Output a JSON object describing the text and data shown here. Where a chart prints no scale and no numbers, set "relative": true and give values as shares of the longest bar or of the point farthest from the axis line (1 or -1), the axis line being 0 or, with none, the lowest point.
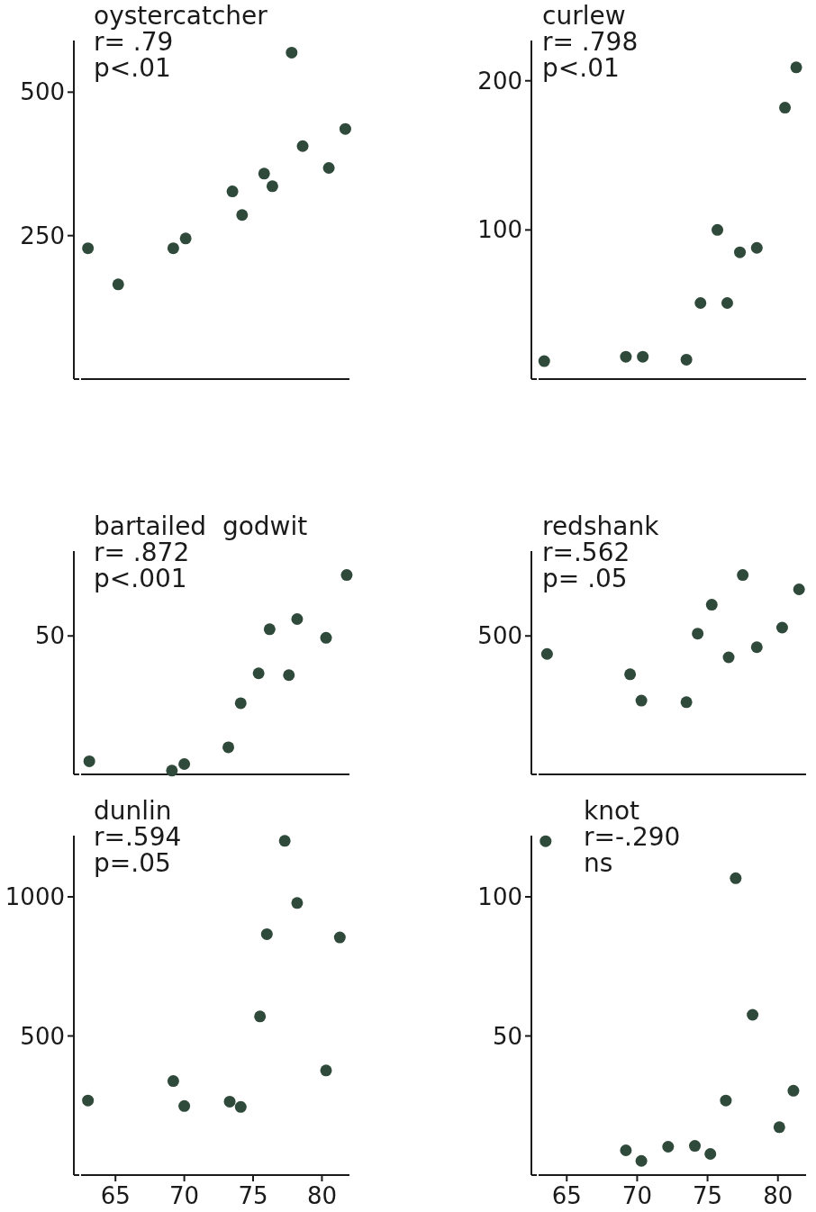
{
  "chart_data": [
    {
      "type": "scatter",
      "title": "oystercatcher",
      "annotations": [
        "r= .79",
        "p<.01"
      ],
      "x": [
        63.0,
        65.2,
        69.2,
        70.1,
        73.5,
        74.2,
        75.8,
        76.4,
        77.8,
        78.6,
        80.5,
        81.7
      ],
      "values": [
        228,
        165,
        228,
        245,
        327,
        286,
        358,
        336,
        569,
        406,
        368,
        436
      ],
      "color": "#2f4a3a",
      "marker": "circle",
      "xlim": [
        62.5,
        82
      ],
      "ylim": [
        0,
        590
      ],
      "yticks": [
        250,
        500
      ],
      "tick_labels": "y"
    },
    {
      "type": "scatter",
      "title": "curlew",
      "annotations": [
        "r= .798",
        "p<.01"
      ],
      "x": [
        63.4,
        69.2,
        70.4,
        73.5,
        74.5,
        75.7,
        76.4,
        77.3,
        78.5,
        80.5,
        81.3
      ],
      "values": [
        12,
        15,
        15,
        13,
        51,
        100,
        51,
        85,
        88,
        182,
        209
      ],
      "color": "#2f4a3a",
      "marker": "circle",
      "xlim": [
        63,
        82
      ],
      "ylim": [
        0,
        227
      ],
      "yticks": [
        100,
        200
      ],
      "tick_labels": "y"
    },
    {
      "type": "scatter",
      "relative": true,
      "title": "bartailed  godwit",
      "annotations": [
        "r= .872",
        "p<.001",
        "50"
      ],
      "x": [
        63.1,
        69.1,
        70.0,
        73.2,
        74.1,
        75.4,
        76.2,
        77.6,
        78.2,
        80.3,
        81.8
      ],
      "values": [
        0.066,
        0.019,
        0.052,
        0.136,
        0.357,
        0.507,
        0.728,
        0.498,
        0.779,
        0.685,
        1
      ],
      "color": "#2f4a3a",
      "marker": "circle",
      "xlim": [
        62.5,
        82
      ],
      "tick_labels": false
    },
    {
      "type": "scatter",
      "relative": true,
      "title": "redshank",
      "annotations": [
        "r=.562",
        "p= .05",
        "500"
      ],
      "x": [
        63.6,
        69.5,
        70.3,
        73.5,
        74.3,
        75.3,
        76.5,
        77.5,
        78.5,
        80.3,
        81.5
      ],
      "values": [
        0.604,
        0.502,
        0.37,
        0.362,
        0.706,
        0.851,
        0.587,
        1,
        0.638,
        0.736,
        0.928
      ],
      "color": "#2f4a3a",
      "marker": "circle",
      "xlim": [
        63,
        82
      ],
      "tick_labels": false
    },
    {
      "type": "scatter",
      "title": "dunlin",
      "annotations": [
        "r=.594",
        "p=.05"
      ],
      "x": [
        63.0,
        69.2,
        70.0,
        73.3,
        74.1,
        75.5,
        76.0,
        77.3,
        78.2,
        80.3,
        81.3
      ],
      "values": [
        268,
        338,
        248,
        264,
        245,
        570,
        866,
        1201,
        978,
        376,
        854
      ],
      "color": "#2f4a3a",
      "marker": "circle",
      "xlim": [
        62.5,
        82
      ],
      "xticks": [
        65,
        70,
        75,
        80
      ],
      "ylim": [
        0,
        1220
      ],
      "yticks": [
        500,
        1000
      ]
    },
    {
      "type": "scatter",
      "title": "knot",
      "annotations": [
        "r=-.290",
        "ns"
      ],
      "x": [
        63.5,
        69.2,
        70.3,
        72.2,
        74.1,
        75.2,
        76.3,
        77.0,
        78.2,
        80.1,
        81.1
      ],
      "values": [
        120,
        8.9,
        5.1,
        10.2,
        10.5,
        7.6,
        26.8,
        106.7,
        57.6,
        17.2,
        30.3
      ],
      "color": "#2f4a3a",
      "marker": "circle",
      "xlim": [
        63,
        82
      ],
      "xticks": [
        65,
        70,
        75,
        80
      ],
      "ylim": [
        0,
        122
      ],
      "yticks": [
        50,
        100
      ]
    }
  ]
}
